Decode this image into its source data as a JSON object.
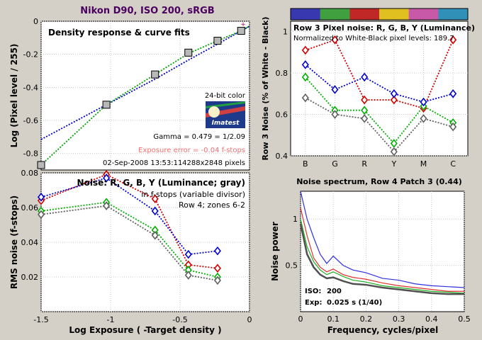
{
  "figure": {
    "title": "Nikon D90, ISO 200, sRGB",
    "title_color": "#4b0060",
    "background": "#d4d0c8"
  },
  "chart_data": [
    {
      "id": "density",
      "type": "line",
      "title": "Density response & curve fits",
      "xlabel": "",
      "ylabel": "Log (Pixel level / 255)",
      "xlim": [
        -1.5,
        0
      ],
      "ylim": [
        -0.9,
        0
      ],
      "xticks": [
        "-1.5",
        "-1",
        "-0.5",
        "0"
      ],
      "yticks": [
        "-0.8",
        "-0.6",
        "-0.4",
        "-0.2",
        "0"
      ],
      "points": {
        "x": [
          -1.5,
          -1.03,
          -0.68,
          -0.44,
          -0.23,
          -0.06
        ],
        "y": [
          -0.87,
          -0.505,
          -0.322,
          -0.19,
          -0.118,
          -0.058
        ]
      },
      "fits": [
        {
          "color": "#0000c0",
          "x": [
            -1.5,
            -1.03,
            -0.68,
            -0.44,
            -0.23,
            -0.06,
            0.0
          ],
          "y": [
            -0.715,
            -0.505,
            -0.35,
            -0.235,
            -0.138,
            -0.058,
            -0.03
          ]
        },
        {
          "color": "#00a000",
          "x": [
            -1.5,
            -1.03,
            -0.68,
            -0.44,
            -0.23,
            -0.06,
            0.0
          ],
          "y": [
            -0.87,
            -0.505,
            -0.322,
            -0.195,
            -0.118,
            -0.058,
            -0.03
          ]
        }
      ],
      "annotations": {
        "bit_depth": "24-bit color",
        "gamma": "Gamma = 0.479 = 1/2.09",
        "exposure_error": "Exposure error = -0.04 f-stops",
        "exposure_error_color": "#f07070",
        "date": "02-Sep-2008 13:53:11",
        "dimensions": "4288x2848 pixels",
        "logo": "Imatest",
        "marker": "+"
      }
    },
    {
      "id": "rms_noise",
      "type": "line",
      "title": "Noise: R, G, B, Y (Luminance; gray)",
      "subtitle": "in f-stops (variable divisor)",
      "subtitle2": "Row 4; zones 6-2",
      "xlabel": "Log Exposure ( -Target density )",
      "ylabel": "RMS noise (f-stops)",
      "xlim": [
        -1.5,
        0
      ],
      "ylim": [
        0,
        0.08
      ],
      "xticks": [
        "-1.5",
        "-1",
        "-0.5",
        "0"
      ],
      "yticks": [
        "0",
        "0.02",
        "0.04",
        "0.06",
        "0.08"
      ],
      "x": [
        -1.5,
        -1.03,
        -0.68,
        -0.44,
        -0.23
      ],
      "series": [
        {
          "color": "#d00000",
          "values": [
            0.064,
            0.079,
            0.065,
            0.027,
            0.025
          ]
        },
        {
          "color": "#00b000",
          "values": [
            0.058,
            0.063,
            0.047,
            0.024,
            0.02
          ]
        },
        {
          "color": "#0000d0",
          "values": [
            0.066,
            0.077,
            0.058,
            0.033,
            0.035
          ]
        },
        {
          "color": "#606060",
          "values": [
            0.056,
            0.061,
            0.044,
            0.021,
            0.018
          ]
        }
      ]
    },
    {
      "id": "row3_noise",
      "type": "line",
      "title": "Row 3 Pixel noise: R, G, B, Y (Luminance)",
      "subtitle": "Normalized to White-Black pixel levels: 189.7",
      "xlabel": "",
      "ylabel": "Row 3 Noise (% of White - Black)",
      "categories": [
        "B",
        "G",
        "R",
        "Y",
        "M",
        "C"
      ],
      "ylim": [
        0.4,
        1.05
      ],
      "yticks": [
        "0.4",
        "0.6",
        "0.8",
        "1"
      ],
      "patch_colors": [
        "#3838b0",
        "#40a040",
        "#c02828",
        "#e0c020",
        "#c858a8",
        "#3090b8"
      ],
      "series": [
        {
          "color": "#d00000",
          "values": [
            0.91,
            0.96,
            0.67,
            0.67,
            0.63,
            0.96
          ]
        },
        {
          "color": "#00b000",
          "values": [
            0.78,
            0.62,
            0.62,
            0.46,
            0.64,
            0.56
          ]
        },
        {
          "color": "#0000d0",
          "values": [
            0.84,
            0.72,
            0.78,
            0.7,
            0.66,
            0.7
          ]
        },
        {
          "color": "#606060",
          "values": [
            0.68,
            0.6,
            0.58,
            0.42,
            0.58,
            0.54
          ]
        }
      ]
    },
    {
      "id": "noise_spectrum",
      "type": "line",
      "title": "Noise spectrum, Row 4 Patch 3 (0.44)",
      "xlabel": "Frequency, cycles/pixel",
      "ylabel": "Noise power",
      "xlim": [
        0,
        0.5
      ],
      "ylim": [
        0,
        1.3
      ],
      "xticks": [
        "0",
        "0.1",
        "0.2",
        "0.3",
        "0.4",
        "0.5"
      ],
      "yticks": [
        "0.5",
        "1"
      ],
      "x": [
        0,
        0.02,
        0.04,
        0.06,
        0.08,
        0.1,
        0.13,
        0.16,
        0.2,
        0.25,
        0.3,
        0.35,
        0.4,
        0.45,
        0.5
      ],
      "series": [
        {
          "color": "#3030e0",
          "values": [
            1.35,
            1.0,
            0.8,
            0.62,
            0.52,
            0.6,
            0.5,
            0.45,
            0.42,
            0.36,
            0.34,
            0.3,
            0.28,
            0.27,
            0.26
          ]
        },
        {
          "color": "#e03030",
          "values": [
            1.12,
            0.82,
            0.58,
            0.48,
            0.43,
            0.46,
            0.4,
            0.37,
            0.35,
            0.31,
            0.28,
            0.26,
            0.24,
            0.22,
            0.22
          ]
        },
        {
          "color": "#20b020",
          "values": [
            1.0,
            0.7,
            0.54,
            0.45,
            0.4,
            0.43,
            0.38,
            0.34,
            0.32,
            0.28,
            0.26,
            0.24,
            0.22,
            0.21,
            0.2
          ]
        },
        {
          "color": "#505050",
          "values": [
            0.95,
            0.62,
            0.48,
            0.4,
            0.36,
            0.37,
            0.33,
            0.3,
            0.29,
            0.26,
            0.24,
            0.22,
            0.2,
            0.19,
            0.19
          ]
        }
      ],
      "iso_label": "ISO:",
      "iso_value": "200",
      "exp_label": "Exp:",
      "exp_value": "0.025 s  (1/40)"
    }
  ]
}
